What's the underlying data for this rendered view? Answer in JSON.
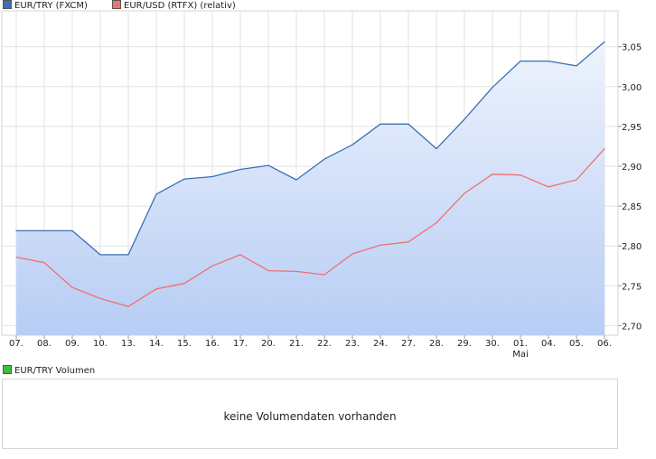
{
  "legend": {
    "series1": {
      "label": "EUR/TRY (FXCM)",
      "color": "#3a6fb8"
    },
    "series2": {
      "label": "EUR/USD (RTFX) (relativ)",
      "color": "#f07070"
    }
  },
  "volume": {
    "legend_label": "EUR/TRY Volumen",
    "legend_color": "#3fbf3f",
    "message": "keine Volumendaten vorhanden"
  },
  "chart_data": {
    "type": "line",
    "categories": [
      "07.",
      "08.",
      "09.",
      "10.",
      "13.",
      "14.",
      "15.",
      "16.",
      "17.",
      "20.",
      "21.",
      "22.",
      "23.",
      "24.",
      "27.",
      "28.",
      "29.",
      "30.",
      "01.",
      "04.",
      "05.",
      "06."
    ],
    "month_label": {
      "index": 18,
      "text": "Mai"
    },
    "y_ticks": [
      "2,70",
      "2,75",
      "2,80",
      "2,85",
      "2,90",
      "2,95",
      "3,00",
      "3,05"
    ],
    "ylim": [
      2.688,
      3.095
    ],
    "y_axis_position": "right",
    "grid": true,
    "legend_position": "top-left",
    "series": [
      {
        "name": "EUR/TRY (FXCM)",
        "color": "#3a6fb8",
        "area_fill": true,
        "values": [
          2.819,
          2.819,
          2.819,
          2.789,
          2.789,
          2.865,
          2.884,
          2.887,
          2.896,
          2.901,
          2.883,
          2.909,
          2.927,
          2.953,
          2.953,
          2.922,
          2.959,
          2.999,
          3.032,
          3.032,
          3.026,
          3.056
        ]
      },
      {
        "name": "EUR/USD (RTFX) (relativ)",
        "color": "#f07070",
        "area_fill": false,
        "values": [
          2.786,
          2.779,
          2.748,
          2.734,
          2.724,
          2.746,
          2.753,
          2.775,
          2.789,
          2.769,
          2.768,
          2.764,
          2.79,
          2.801,
          2.805,
          2.829,
          2.866,
          2.89,
          2.889,
          2.874,
          2.883,
          2.922
        ]
      }
    ]
  }
}
